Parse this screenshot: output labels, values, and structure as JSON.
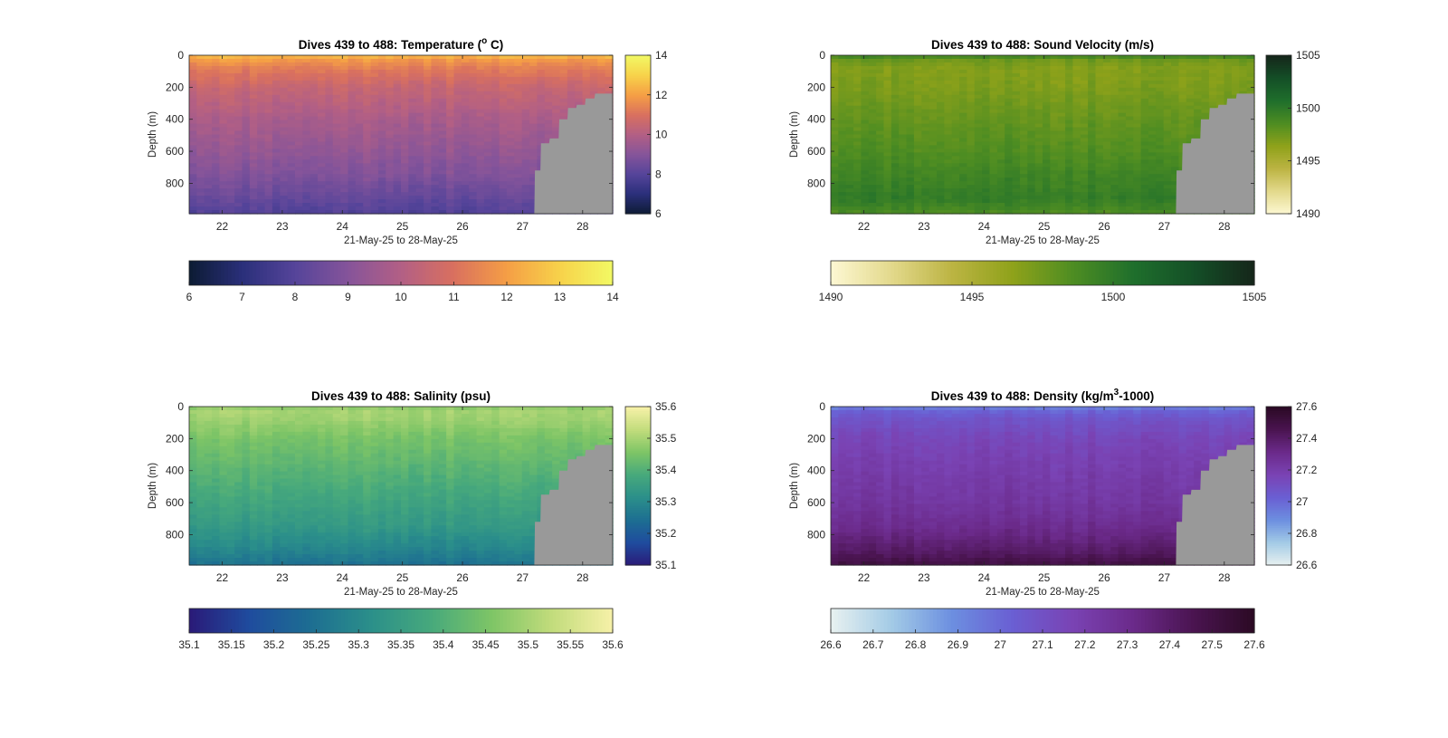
{
  "figure": {
    "background": "#ffffff",
    "terrain_color": "#999999",
    "x_tick_labels": [
      "22",
      "23",
      "24",
      "25",
      "26",
      "27",
      "28"
    ],
    "x_ticks": [
      22,
      23,
      24,
      25,
      26,
      27,
      28
    ],
    "x_range": [
      21.45,
      28.5
    ],
    "depth_range": [
      0,
      990
    ],
    "depth_ticks": [
      0,
      200,
      400,
      600,
      800
    ],
    "depth_tick_labels": [
      "0",
      "200",
      "400",
      "600",
      "800"
    ],
    "xlabel": "21-May-25 to 28-May-25",
    "ylabel": "Depth (m)"
  },
  "chart_data": [
    {
      "id": "temperature",
      "type": "heatmap",
      "title_pre": "Dives 439 to 488: Temperature (",
      "title_sup": "o",
      "title_post": " C)",
      "xlabel": "21-May-25 to 28-May-25",
      "ylabel": "Depth (m)",
      "x_range": [
        21.45,
        28.5
      ],
      "ylim": [
        0,
        990
      ],
      "clim": [
        6,
        14
      ],
      "colormap": [
        "#0c1b33",
        "#2a2f7a",
        "#55449a",
        "#85549a",
        "#b25f85",
        "#d9705f",
        "#f59e45",
        "#f7d24a",
        "#f2f964"
      ],
      "profile_depths": [
        0,
        30,
        80,
        200,
        400,
        600,
        750,
        900,
        990
      ],
      "profile_values": [
        12.6,
        11.9,
        11.3,
        10.5,
        9.8,
        9.3,
        8.9,
        8.3,
        7.9
      ],
      "right_cbar_ticks": [
        6,
        8,
        10,
        12,
        14
      ],
      "bottom_cbar_ticks": [
        6,
        7,
        8,
        9,
        10,
        11,
        12,
        13,
        14
      ]
    },
    {
      "id": "sound_velocity",
      "type": "heatmap",
      "title": "Dives 439 to 488: Sound Velocity (m/s)",
      "xlabel": "21-May-25 to 28-May-25",
      "ylabel": "Depth (m)",
      "x_range": [
        21.45,
        28.5
      ],
      "ylim": [
        0,
        990
      ],
      "clim": [
        1490,
        1505
      ],
      "colormap": [
        "#fdf8d3",
        "#e3d98c",
        "#bcb443",
        "#8fa21a",
        "#4e8d22",
        "#1f6f2c",
        "#144f27",
        "#15261a"
      ],
      "profile_depths": [
        0,
        30,
        80,
        200,
        400,
        600,
        750,
        900,
        990
      ],
      "profile_values": [
        1499.5,
        1497.5,
        1496.8,
        1497.0,
        1497.8,
        1498.5,
        1499.2,
        1499.8,
        1498.6
      ],
      "right_cbar_ticks": [
        1490,
        1495,
        1500,
        1505
      ],
      "bottom_cbar_ticks": [
        1490,
        1495,
        1500,
        1505
      ]
    },
    {
      "id": "salinity",
      "type": "heatmap",
      "title": "Dives 439 to 488: Salinity (psu)",
      "xlabel": "21-May-25 to 28-May-25",
      "ylabel": "Depth (m)",
      "x_range": [
        21.45,
        28.5
      ],
      "ylim": [
        0,
        990
      ],
      "clim": [
        35.1,
        35.6
      ],
      "colormap": [
        "#2a1a78",
        "#1f4c9e",
        "#1d6e92",
        "#2b8f8a",
        "#47a97c",
        "#7ec566",
        "#c2dc7c",
        "#f7f1a8"
      ],
      "profile_depths": [
        0,
        30,
        80,
        200,
        400,
        600,
        750,
        900,
        990
      ],
      "profile_values": [
        35.47,
        35.5,
        35.49,
        35.45,
        35.41,
        35.37,
        35.34,
        35.29,
        35.25
      ],
      "right_cbar_ticks": [
        35.1,
        35.2,
        35.3,
        35.4,
        35.5,
        35.6
      ],
      "right_cbar_tick_labels": [
        "35.1",
        "35.2",
        "35.3",
        "35.4",
        "35.5",
        "35.6"
      ],
      "bottom_cbar_ticks": [
        35.1,
        35.15,
        35.2,
        35.25,
        35.3,
        35.35,
        35.4,
        35.45,
        35.5,
        35.55,
        35.6
      ],
      "bottom_cbar_tick_labels": [
        "35.1",
        "35.15",
        "35.2",
        "35.25",
        "35.3",
        "35.35",
        "35.4",
        "35.45",
        "35.5",
        "35.55",
        "35.6"
      ]
    },
    {
      "id": "density",
      "type": "heatmap",
      "title_pre": "Dives 439 to 488: Density (kg/m",
      "title_sup": "3",
      "title_post": "-1000)",
      "xlabel": "21-May-25 to 28-May-25",
      "ylabel": "Depth (m)",
      "x_range": [
        21.45,
        28.5
      ],
      "ylim": [
        0,
        990
      ],
      "clim": [
        26.6,
        27.6
      ],
      "colormap": [
        "#e8f1f0",
        "#a3cbe6",
        "#6c8fe0",
        "#6a5fd3",
        "#7a43b4",
        "#6b2a8a",
        "#4a1450",
        "#2b0a24"
      ],
      "profile_depths": [
        0,
        30,
        80,
        200,
        400,
        600,
        750,
        900,
        990
      ],
      "profile_values": [
        26.92,
        27.02,
        27.08,
        27.15,
        27.2,
        27.24,
        27.3,
        27.4,
        27.5
      ],
      "right_cbar_ticks": [
        26.6,
        26.8,
        27,
        27.2,
        27.4,
        27.6
      ],
      "right_cbar_tick_labels": [
        "26.6",
        "26.8",
        "27",
        "27.2",
        "27.4",
        "27.6"
      ],
      "bottom_cbar_ticks": [
        26.6,
        26.7,
        26.8,
        26.9,
        27,
        27.1,
        27.2,
        27.3,
        27.4,
        27.5,
        27.6
      ],
      "bottom_cbar_tick_labels": [
        "26.6",
        "26.7",
        "26.8",
        "26.9",
        "27",
        "27.1",
        "27.2",
        "27.3",
        "27.4",
        "27.5",
        "27.6"
      ]
    }
  ]
}
